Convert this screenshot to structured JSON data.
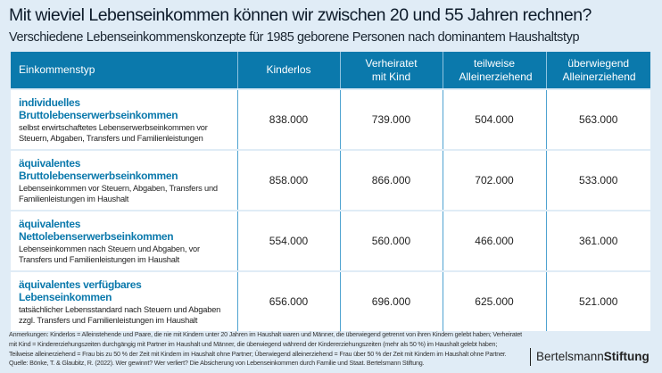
{
  "title": "Mit wieviel Lebenseinkommen können wir zwischen 20 und 55 Jahren rechnen?",
  "subtitle": "Verschiedene Lebenseinkommenskonzepte für 1985 geborene Personen nach dominantem Haushaltstyp",
  "table": {
    "headers": [
      "Einkommenstyp",
      "Kinderlos",
      "Verheiratet mit Kind",
      "teilweise Alleinerziehend",
      "überwiegend Alleinerziehend"
    ],
    "rows": [
      {
        "name": "individuelles Bruttolebenserwerbseinkommen",
        "desc": "selbst erwirtschaftetes Lebenserwerbseinkommen vor Steuern, Abgaben, Transfers und Familienleistungen",
        "values": [
          "838.000",
          "739.000",
          "504.000",
          "563.000"
        ]
      },
      {
        "name": "äquivalentes Bruttolebenserwerbseinkommen",
        "desc": "Lebenseinkommen vor Steuern, Abgaben, Transfers und Familienleistungen im Haushalt",
        "values": [
          "858.000",
          "866.000",
          "702.000",
          "533.000"
        ]
      },
      {
        "name": "äquivalentes Nettolebenserwerbseinkommen",
        "desc": "Lebenseinkommen nach Steuern und Abgaben, vor Transfers und Familienleistungen im Haushalt",
        "values": [
          "554.000",
          "560.000",
          "466.000",
          "361.000"
        ]
      },
      {
        "name": "äquivalentes verfügbares Lebenseinkommen",
        "desc": "tatsächlicher Lebensstandard nach Steuern und Abgaben zzgl. Transfers und Familienleistungen im Haushalt",
        "values": [
          "656.000",
          "696.000",
          "625.000",
          "521.000"
        ]
      }
    ]
  },
  "notes": "Anmerkungen: Kinderlos = Alleinstehende und Paare, die nie mit Kindern unter 20 Jahren im Haushalt waren und Männer, die überwiegend getrennt von ihren Kindern gelebt haben; Verheiratet mit Kind = Kindererziehungszeiten durchgängig mit Partner im Haushalt und Männer, die überwiegend während der Kindererziehungszeiten (mehr als 50 %) im Haushalt gelebt haben; Teilweise alleinerziehend = Frau bis zu 50 % der Zeit mit Kindern im Haushalt ohne Partner; Überwiegend alleinerziehend = Frau über 50 % der Zeit mit Kindern im Haushalt ohne Partner. Quelle: Bönke, T. & Glaubitz, R. (2022). Wer gewinnt? Wer verliert? Die Absicherung von Lebenseinkommen durch Familie und Staat. Bertelsmann Stiftung.",
  "logo": {
    "part1": "Bertelsmann",
    "part2": "Stiftung"
  },
  "colors": {
    "header": "#0b79ac",
    "background": "#e0ecf6",
    "accent_text": "#0b79ac"
  }
}
